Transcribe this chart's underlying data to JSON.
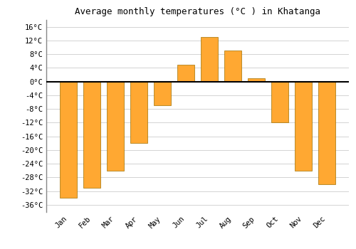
{
  "months": [
    "Jan",
    "Feb",
    "Mar",
    "Apr",
    "May",
    "Jun",
    "Jul",
    "Aug",
    "Sep",
    "Oct",
    "Nov",
    "Dec"
  ],
  "values": [
    -34,
    -31,
    -26,
    -18,
    -7,
    5,
    13,
    9,
    1,
    -12,
    -26,
    -30
  ],
  "bar_color": "#FFA832",
  "bar_edge_color": "#A07000",
  "title": "Average monthly temperatures (°C ) in Khatanga",
  "title_fontsize": 9,
  "ylim": [
    -38,
    18
  ],
  "yticks": [
    -36,
    -32,
    -28,
    -24,
    -20,
    -16,
    -12,
    -8,
    -4,
    0,
    4,
    8,
    12,
    16
  ],
  "ytick_labels": [
    "-36°C",
    "-32°C",
    "-28°C",
    "-24°C",
    "-20°C",
    "-16°C",
    "-12°C",
    "-8°C",
    "-4°C",
    "0°C",
    "4°C",
    "8°C",
    "12°C",
    "16°C"
  ],
  "background_color": "#ffffff",
  "grid_color": "#cccccc",
  "zero_line_color": "#000000",
  "tick_label_fontsize": 7.5,
  "bar_width": 0.72
}
